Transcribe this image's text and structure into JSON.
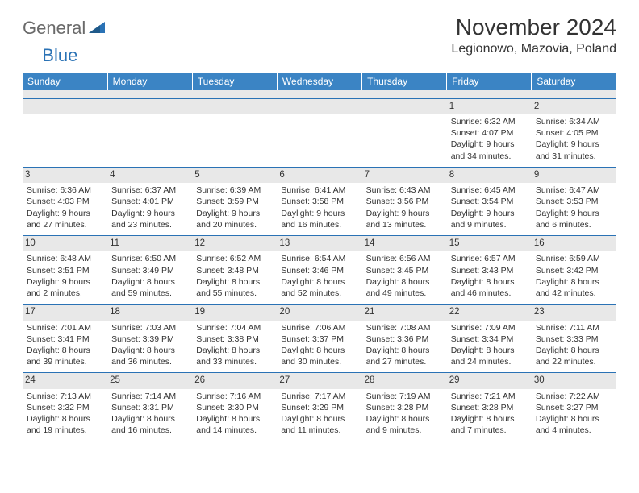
{
  "logo": {
    "text1": "General",
    "text2": "Blue"
  },
  "title": "November 2024",
  "location": "Legionowo, Mazovia, Poland",
  "colors": {
    "header_bg": "#3b84c4",
    "header_text": "#ffffff",
    "daynum_bg": "#e8e8e8",
    "border": "#2a72b5",
    "body_text": "#333333",
    "logo_gray": "#6a6a6a",
    "logo_blue": "#2a72b5"
  },
  "weekdays": [
    "Sunday",
    "Monday",
    "Tuesday",
    "Wednesday",
    "Thursday",
    "Friday",
    "Saturday"
  ],
  "weeks": [
    [
      null,
      null,
      null,
      null,
      null,
      {
        "n": "1",
        "sunrise": "6:32 AM",
        "sunset": "4:07 PM",
        "daylight": "9 hours and 34 minutes."
      },
      {
        "n": "2",
        "sunrise": "6:34 AM",
        "sunset": "4:05 PM",
        "daylight": "9 hours and 31 minutes."
      }
    ],
    [
      {
        "n": "3",
        "sunrise": "6:36 AM",
        "sunset": "4:03 PM",
        "daylight": "9 hours and 27 minutes."
      },
      {
        "n": "4",
        "sunrise": "6:37 AM",
        "sunset": "4:01 PM",
        "daylight": "9 hours and 23 minutes."
      },
      {
        "n": "5",
        "sunrise": "6:39 AM",
        "sunset": "3:59 PM",
        "daylight": "9 hours and 20 minutes."
      },
      {
        "n": "6",
        "sunrise": "6:41 AM",
        "sunset": "3:58 PM",
        "daylight": "9 hours and 16 minutes."
      },
      {
        "n": "7",
        "sunrise": "6:43 AM",
        "sunset": "3:56 PM",
        "daylight": "9 hours and 13 minutes."
      },
      {
        "n": "8",
        "sunrise": "6:45 AM",
        "sunset": "3:54 PM",
        "daylight": "9 hours and 9 minutes."
      },
      {
        "n": "9",
        "sunrise": "6:47 AM",
        "sunset": "3:53 PM",
        "daylight": "9 hours and 6 minutes."
      }
    ],
    [
      {
        "n": "10",
        "sunrise": "6:48 AM",
        "sunset": "3:51 PM",
        "daylight": "9 hours and 2 minutes."
      },
      {
        "n": "11",
        "sunrise": "6:50 AM",
        "sunset": "3:49 PM",
        "daylight": "8 hours and 59 minutes."
      },
      {
        "n": "12",
        "sunrise": "6:52 AM",
        "sunset": "3:48 PM",
        "daylight": "8 hours and 55 minutes."
      },
      {
        "n": "13",
        "sunrise": "6:54 AM",
        "sunset": "3:46 PM",
        "daylight": "8 hours and 52 minutes."
      },
      {
        "n": "14",
        "sunrise": "6:56 AM",
        "sunset": "3:45 PM",
        "daylight": "8 hours and 49 minutes."
      },
      {
        "n": "15",
        "sunrise": "6:57 AM",
        "sunset": "3:43 PM",
        "daylight": "8 hours and 46 minutes."
      },
      {
        "n": "16",
        "sunrise": "6:59 AM",
        "sunset": "3:42 PM",
        "daylight": "8 hours and 42 minutes."
      }
    ],
    [
      {
        "n": "17",
        "sunrise": "7:01 AM",
        "sunset": "3:41 PM",
        "daylight": "8 hours and 39 minutes."
      },
      {
        "n": "18",
        "sunrise": "7:03 AM",
        "sunset": "3:39 PM",
        "daylight": "8 hours and 36 minutes."
      },
      {
        "n": "19",
        "sunrise": "7:04 AM",
        "sunset": "3:38 PM",
        "daylight": "8 hours and 33 minutes."
      },
      {
        "n": "20",
        "sunrise": "7:06 AM",
        "sunset": "3:37 PM",
        "daylight": "8 hours and 30 minutes."
      },
      {
        "n": "21",
        "sunrise": "7:08 AM",
        "sunset": "3:36 PM",
        "daylight": "8 hours and 27 minutes."
      },
      {
        "n": "22",
        "sunrise": "7:09 AM",
        "sunset": "3:34 PM",
        "daylight": "8 hours and 24 minutes."
      },
      {
        "n": "23",
        "sunrise": "7:11 AM",
        "sunset": "3:33 PM",
        "daylight": "8 hours and 22 minutes."
      }
    ],
    [
      {
        "n": "24",
        "sunrise": "7:13 AM",
        "sunset": "3:32 PM",
        "daylight": "8 hours and 19 minutes."
      },
      {
        "n": "25",
        "sunrise": "7:14 AM",
        "sunset": "3:31 PM",
        "daylight": "8 hours and 16 minutes."
      },
      {
        "n": "26",
        "sunrise": "7:16 AM",
        "sunset": "3:30 PM",
        "daylight": "8 hours and 14 minutes."
      },
      {
        "n": "27",
        "sunrise": "7:17 AM",
        "sunset": "3:29 PM",
        "daylight": "8 hours and 11 minutes."
      },
      {
        "n": "28",
        "sunrise": "7:19 AM",
        "sunset": "3:28 PM",
        "daylight": "8 hours and 9 minutes."
      },
      {
        "n": "29",
        "sunrise": "7:21 AM",
        "sunset": "3:28 PM",
        "daylight": "8 hours and 7 minutes."
      },
      {
        "n": "30",
        "sunrise": "7:22 AM",
        "sunset": "3:27 PM",
        "daylight": "8 hours and 4 minutes."
      }
    ]
  ],
  "labels": {
    "sunrise": "Sunrise:",
    "sunset": "Sunset:",
    "daylight": "Daylight:"
  }
}
